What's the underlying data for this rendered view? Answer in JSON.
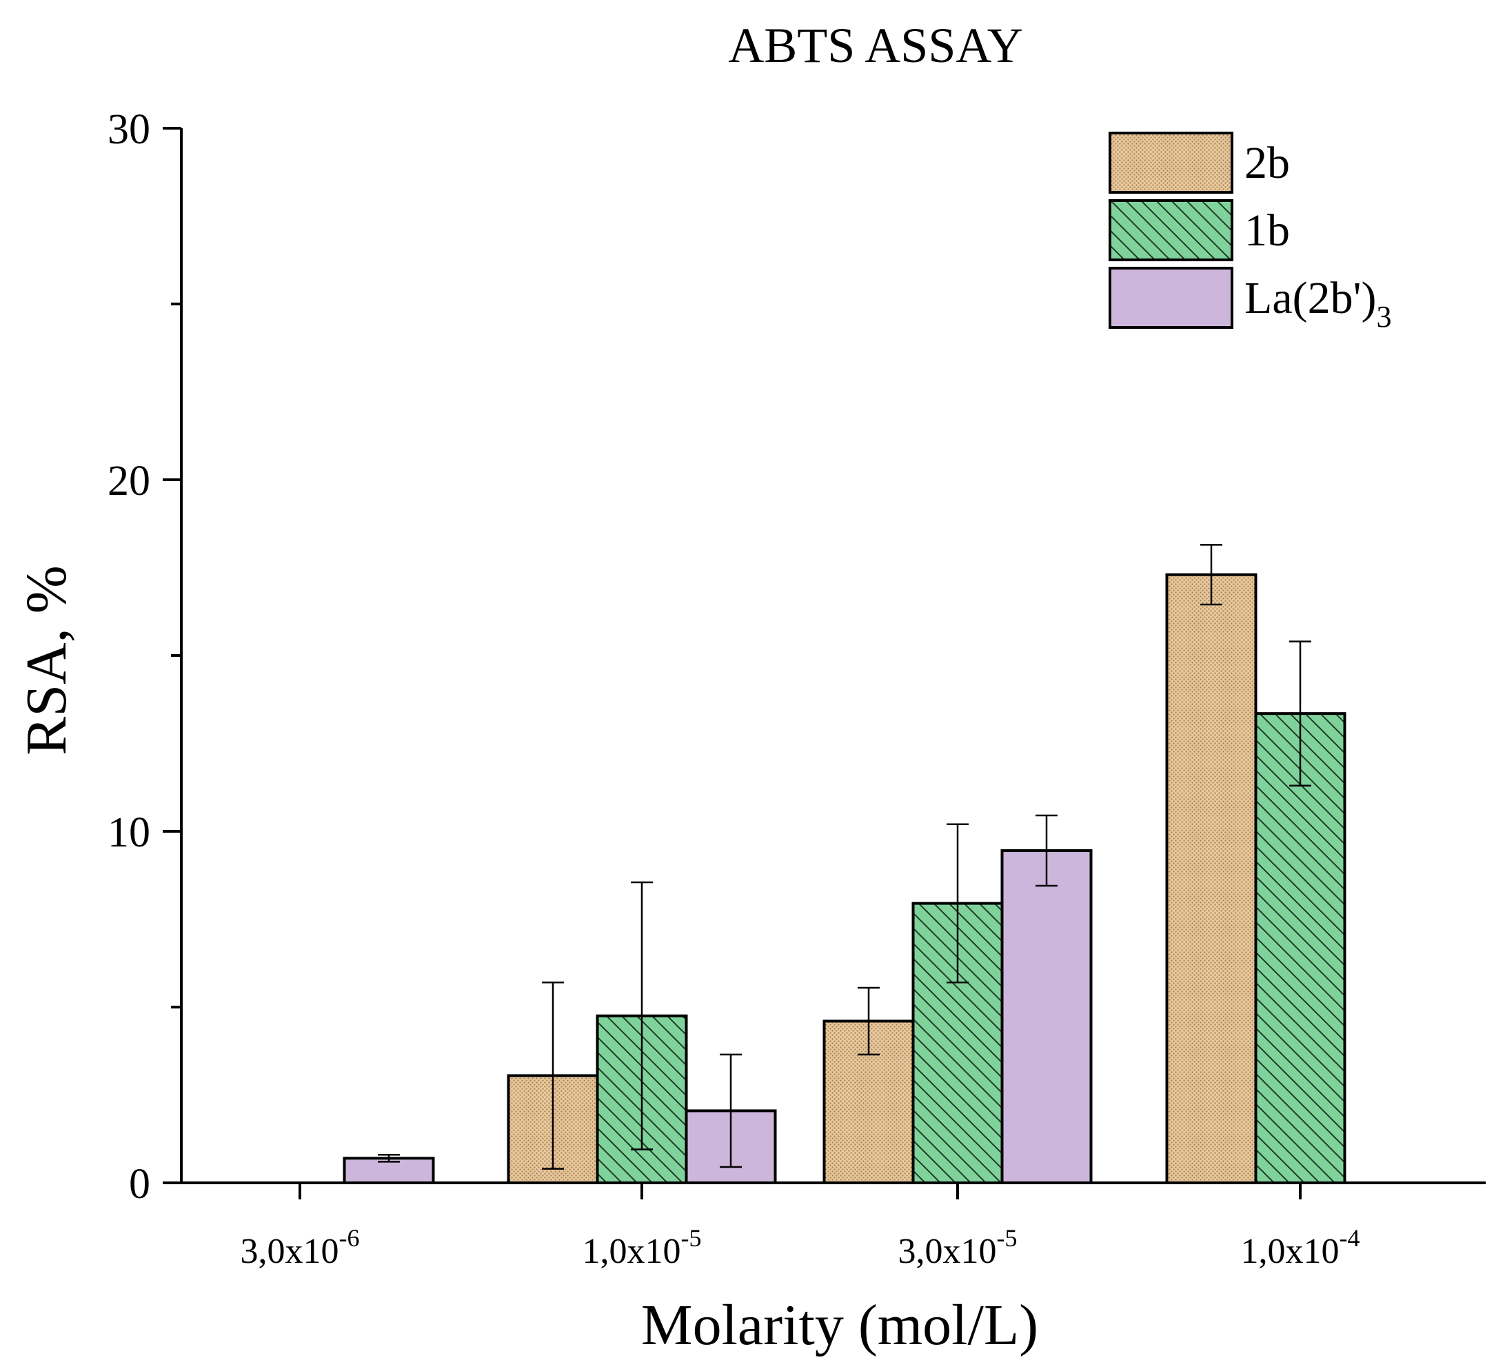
{
  "chart_data": {
    "type": "bar",
    "title": "ABTS ASSAY",
    "xlabel": "Molarity (mol/L)",
    "ylabel": "RSA, %",
    "ylim": [
      0,
      30
    ],
    "yticks": [
      0,
      10,
      20,
      30
    ],
    "grid": false,
    "legend_position": "top-right",
    "categories": [
      {
        "base": "3,0x10",
        "exp": "-6"
      },
      {
        "base": "1,0x10",
        "exp": "-5"
      },
      {
        "base": "3,0x10",
        "exp": "-5"
      },
      {
        "base": "1,0x10",
        "exp": "-4"
      }
    ],
    "series": [
      {
        "name": "2b",
        "color": "#e8c89a",
        "pattern": "dots",
        "values": [
          null,
          3.05,
          4.6,
          17.3
        ],
        "errors": [
          null,
          2.65,
          0.95,
          0.85
        ]
      },
      {
        "name": "1b",
        "color": "#7fd39a",
        "pattern": "hatch",
        "values": [
          null,
          4.75,
          7.95,
          13.35
        ],
        "errors": [
          null,
          3.8,
          2.25,
          2.05
        ]
      },
      {
        "name": "La(2b')",
        "name_sub": "3",
        "color": "#cdb6db",
        "pattern": "none",
        "values": [
          0.7,
          2.05,
          9.45,
          null
        ],
        "errors": [
          0.1,
          1.6,
          1.0,
          null
        ]
      }
    ]
  }
}
